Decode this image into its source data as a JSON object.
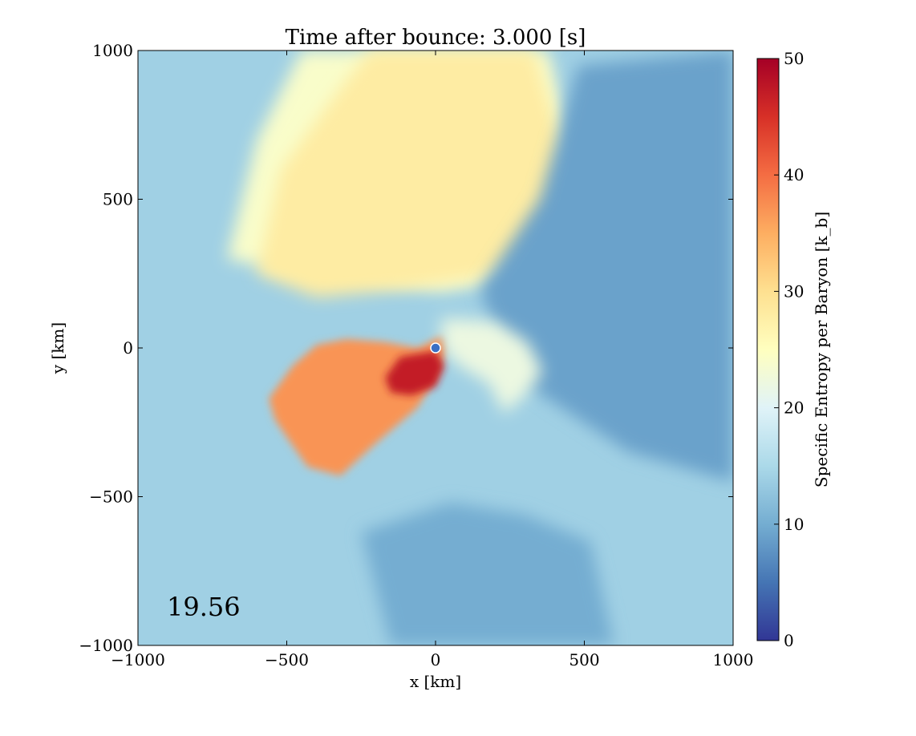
{
  "chart_data": {
    "type": "heatmap",
    "title": "Time after bounce: 3.000 [s]",
    "xlabel": "x [km]",
    "ylabel": "y [km]",
    "xlim": [
      -1000,
      1000
    ],
    "ylim": [
      -1000,
      1000
    ],
    "x_ticks": [
      -1000,
      -500,
      0,
      500,
      1000
    ],
    "y_ticks": [
      -1000,
      -500,
      0,
      500,
      1000
    ],
    "annotation": "19.56",
    "grid": false,
    "colorbar": {
      "label": "Specific Entropy per Baryon [k_b]",
      "range": [
        0,
        50
      ],
      "ticks": [
        0,
        10,
        20,
        30,
        40,
        50
      ],
      "colormap": "RdYlBu_r",
      "colors": [
        "#313695",
        "#4575b4",
        "#74add1",
        "#abd9e9",
        "#e0f3f8",
        "#ffffbf",
        "#fee090",
        "#fdae61",
        "#f46d43",
        "#d73027",
        "#a50026"
      ]
    },
    "marker": {
      "x": 0,
      "y": 0,
      "color": "#3a6fc4",
      "edge": "#ffffff"
    },
    "features": [
      {
        "name": "background-flow",
        "value": 14,
        "region": "whole domain"
      },
      {
        "name": "upper-plume",
        "value": 28,
        "region": "north, x -600..450, y 150..1000"
      },
      {
        "name": "outer-upper-plume",
        "value": 24,
        "region": "north, x -700..500, y 300..1000"
      },
      {
        "name": "low-entropy-wedge",
        "value": 9,
        "region": "east, x 150..1000, y -450..950"
      },
      {
        "name": "low-entropy-south",
        "value": 10,
        "region": "south, x -250..600, y -1000..-550"
      },
      {
        "name": "hot-bubble",
        "value": 37,
        "region": "x -560..40, y -430..40"
      },
      {
        "name": "hot-core",
        "value": 47,
        "region": "x -170..30, y -160..0"
      },
      {
        "name": "collar-ring",
        "value": 22,
        "region": "x 20..360, y -220..100"
      }
    ]
  }
}
